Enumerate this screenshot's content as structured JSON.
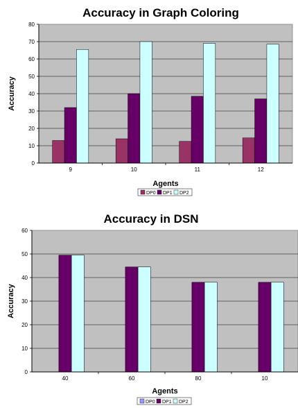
{
  "chart_data": [
    {
      "type": "bar",
      "title": "Accuracy in Graph Coloring",
      "xlabel": "Agents",
      "ylabel": "Accuracy",
      "categories": [
        "9",
        "10",
        "11",
        "12"
      ],
      "ylim": [
        0,
        80
      ],
      "yticks": [
        "0",
        "10",
        "20",
        "30",
        "40",
        "50",
        "60",
        "70",
        "80"
      ],
      "series": [
        {
          "name": "DP0",
          "color": "#993366",
          "values": [
            13,
            14,
            12.5,
            14.5
          ]
        },
        {
          "name": "DP1",
          "color": "#660066",
          "values": [
            32,
            40,
            38.5,
            37
          ]
        },
        {
          "name": "DP2",
          "color": "#ccffff",
          "values": [
            65.5,
            70,
            69,
            68.5
          ]
        }
      ],
      "legend": "bottom",
      "grid": true,
      "plot_background": "#c0c0c0"
    },
    {
      "type": "bar",
      "title": "Accuracy in DSN",
      "xlabel": "Agents",
      "ylabel": "Accuracy",
      "categories": [
        "40",
        "60",
        "80",
        "10"
      ],
      "ylim": [
        0,
        60
      ],
      "yticks": [
        "0",
        "10",
        "20",
        "30",
        "40",
        "50",
        "60"
      ],
      "series": [
        {
          "name": "DP0",
          "color": "#9999ff",
          "values": [
            0,
            0,
            0,
            0
          ]
        },
        {
          "name": "DP1",
          "color": "#660066",
          "values": [
            49.5,
            44.5,
            38,
            38
          ]
        },
        {
          "name": "DP2",
          "color": "#ccffff",
          "values": [
            49.5,
            44.5,
            38,
            38
          ]
        }
      ],
      "legend": "bottom",
      "grid": true,
      "plot_background": "#c0c0c0"
    }
  ]
}
